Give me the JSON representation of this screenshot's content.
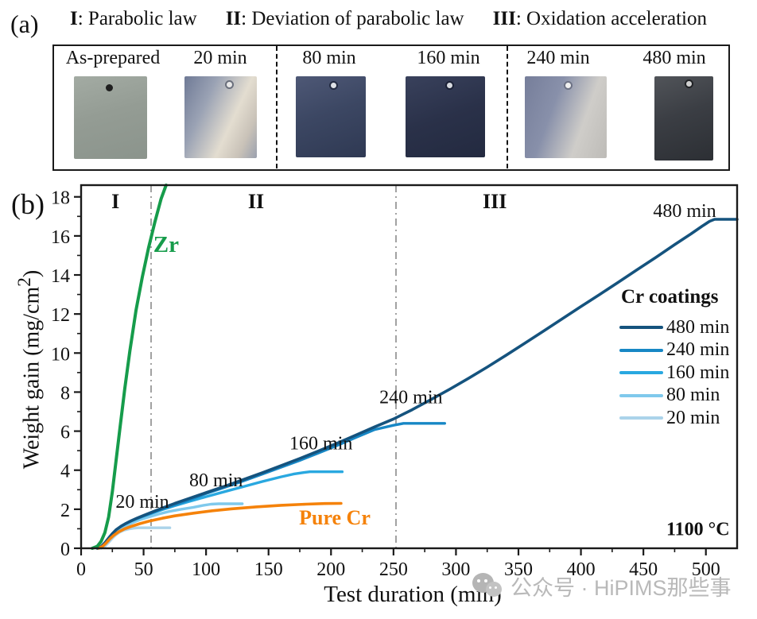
{
  "watermark": {
    "text": "公众号 · HiPIMS那些事"
  },
  "panel_a": {
    "tag": "(a)",
    "header": [
      {
        "numeral": "I",
        "text": ": Parabolic law"
      },
      {
        "numeral": "II",
        "text": ": Deviation of parabolic law"
      },
      {
        "numeral": "III",
        "text": ": Oxidation acceleration"
      }
    ],
    "samples": [
      {
        "label": "As-prepared"
      },
      {
        "label": "20 min"
      },
      {
        "label": "80 min"
      },
      {
        "label": "160 min"
      },
      {
        "label": "240 min"
      },
      {
        "label": "480 min"
      }
    ]
  },
  "panel_b": {
    "tag": "(b)",
    "xlabel": "Test duration (min)",
    "ylabel_pre": "Weight gain (mg/cm",
    "ylabel_sup": "2",
    "ylabel_post": ")"
  },
  "chart_data": {
    "type": "line",
    "title": "",
    "xlabel": "Test duration (min)",
    "ylabel": "Weight gain (mg/cm²)",
    "xlim": [
      0,
      525
    ],
    "ylim": [
      0,
      18.6
    ],
    "x_major_ticks": [
      0,
      50,
      100,
      150,
      200,
      250,
      300,
      350,
      400,
      450,
      500
    ],
    "x_minor_step": 25,
    "y_major_ticks": [
      0,
      2,
      4,
      6,
      8,
      10,
      12,
      14,
      16,
      18
    ],
    "y_minor_step": 1,
    "grid": false,
    "frame_color": "#1a1a1a",
    "region_dividers_x": [
      56,
      252
    ],
    "legend": {
      "title": "Cr coatings",
      "entries": [
        {
          "label": "480 min",
          "color": "#15537e"
        },
        {
          "label": "240 min",
          "color": "#1787c5"
        },
        {
          "label": "160 min",
          "color": "#29a8e0"
        },
        {
          "label": "80 min",
          "color": "#7fc9ec"
        },
        {
          "label": "20 min",
          "color": "#abd3ea"
        }
      ]
    },
    "series": [
      {
        "id": "cr-20",
        "name": "Cr coating 20 min",
        "color": "#abd3ea",
        "width": 3.4,
        "points": [
          [
            16,
            0
          ],
          [
            19,
            0.1
          ],
          [
            22,
            0.3
          ],
          [
            25,
            0.52
          ],
          [
            28,
            0.7
          ],
          [
            31,
            0.83
          ],
          [
            34,
            0.92
          ],
          [
            38,
            0.99
          ],
          [
            42,
            1.03
          ],
          [
            46,
            1.05
          ],
          [
            71,
            1.05
          ]
        ]
      },
      {
        "id": "cr-80",
        "name": "Cr coating 80 min",
        "color": "#7fc9ec",
        "width": 3.4,
        "points": [
          [
            14,
            0
          ],
          [
            17,
            0.08
          ],
          [
            20,
            0.27
          ],
          [
            23,
            0.5
          ],
          [
            26,
            0.72
          ],
          [
            30,
            0.92
          ],
          [
            34,
            1.08
          ],
          [
            38,
            1.22
          ],
          [
            43,
            1.36
          ],
          [
            48,
            1.48
          ],
          [
            55,
            1.62
          ],
          [
            62,
            1.75
          ],
          [
            70,
            1.88
          ],
          [
            80,
            2.0
          ],
          [
            90,
            2.1
          ],
          [
            98,
            2.2
          ],
          [
            104,
            2.26
          ],
          [
            110,
            2.28
          ],
          [
            129,
            2.28
          ]
        ]
      },
      {
        "id": "cr-160",
        "name": "Cr coating 160 min",
        "color": "#29a8e0",
        "width": 3.4,
        "points": [
          [
            13,
            0
          ],
          [
            16,
            0.08
          ],
          [
            19,
            0.28
          ],
          [
            22,
            0.52
          ],
          [
            25,
            0.75
          ],
          [
            28,
            0.95
          ],
          [
            32,
            1.12
          ],
          [
            36,
            1.27
          ],
          [
            40,
            1.39
          ],
          [
            45,
            1.52
          ],
          [
            50,
            1.64
          ],
          [
            57,
            1.8
          ],
          [
            65,
            1.98
          ],
          [
            75,
            2.18
          ],
          [
            85,
            2.37
          ],
          [
            100,
            2.64
          ],
          [
            115,
            2.9
          ],
          [
            130,
            3.16
          ],
          [
            145,
            3.42
          ],
          [
            160,
            3.66
          ],
          [
            170,
            3.8
          ],
          [
            178,
            3.88
          ],
          [
            183,
            3.92
          ],
          [
            209,
            3.92
          ]
        ]
      },
      {
        "id": "cr-240",
        "name": "Cr coating 240 min",
        "color": "#1787c5",
        "width": 3.4,
        "points": [
          [
            13,
            0
          ],
          [
            16,
            0.08
          ],
          [
            19,
            0.28
          ],
          [
            22,
            0.52
          ],
          [
            25,
            0.75
          ],
          [
            28,
            0.95
          ],
          [
            32,
            1.13
          ],
          [
            36,
            1.28
          ],
          [
            40,
            1.4
          ],
          [
            45,
            1.54
          ],
          [
            50,
            1.66
          ],
          [
            57,
            1.83
          ],
          [
            65,
            2.02
          ],
          [
            75,
            2.23
          ],
          [
            85,
            2.44
          ],
          [
            100,
            2.8
          ],
          [
            115,
            3.12
          ],
          [
            130,
            3.45
          ],
          [
            145,
            3.8
          ],
          [
            160,
            4.15
          ],
          [
            175,
            4.5
          ],
          [
            190,
            4.88
          ],
          [
            205,
            5.27
          ],
          [
            220,
            5.68
          ],
          [
            235,
            6.08
          ],
          [
            250,
            6.3
          ],
          [
            258,
            6.4
          ],
          [
            291,
            6.4
          ]
        ]
      },
      {
        "id": "cr-480",
        "name": "Cr coating 480 min",
        "color": "#15537e",
        "width": 3.6,
        "points": [
          [
            13,
            0
          ],
          [
            16,
            0.08
          ],
          [
            19,
            0.28
          ],
          [
            22,
            0.52
          ],
          [
            25,
            0.75
          ],
          [
            28,
            0.95
          ],
          [
            32,
            1.13
          ],
          [
            36,
            1.28
          ],
          [
            40,
            1.41
          ],
          [
            45,
            1.55
          ],
          [
            50,
            1.68
          ],
          [
            57,
            1.86
          ],
          [
            65,
            2.06
          ],
          [
            75,
            2.3
          ],
          [
            85,
            2.52
          ],
          [
            100,
            2.85
          ],
          [
            115,
            3.18
          ],
          [
            130,
            3.52
          ],
          [
            145,
            3.87
          ],
          [
            160,
            4.23
          ],
          [
            175,
            4.6
          ],
          [
            190,
            4.98
          ],
          [
            205,
            5.38
          ],
          [
            220,
            5.8
          ],
          [
            235,
            6.22
          ],
          [
            250,
            6.62
          ],
          [
            265,
            7.1
          ],
          [
            280,
            7.62
          ],
          [
            295,
            8.15
          ],
          [
            310,
            8.7
          ],
          [
            325,
            9.28
          ],
          [
            340,
            9.88
          ],
          [
            355,
            10.5
          ],
          [
            370,
            11.12
          ],
          [
            385,
            11.75
          ],
          [
            400,
            12.38
          ],
          [
            415,
            13.0
          ],
          [
            430,
            13.63
          ],
          [
            445,
            14.27
          ],
          [
            460,
            14.9
          ],
          [
            475,
            15.55
          ],
          [
            488,
            16.1
          ],
          [
            497,
            16.5
          ],
          [
            503,
            16.75
          ],
          [
            507,
            16.85
          ],
          [
            525,
            16.85
          ]
        ]
      },
      {
        "id": "pure-cr",
        "name": "Pure Cr",
        "color": "#f5820a",
        "width": 3.6,
        "points": [
          [
            14,
            0
          ],
          [
            17,
            0.09
          ],
          [
            20,
            0.27
          ],
          [
            23,
            0.48
          ],
          [
            26,
            0.66
          ],
          [
            30,
            0.84
          ],
          [
            35,
            1.0
          ],
          [
            40,
            1.12
          ],
          [
            47,
            1.26
          ],
          [
            55,
            1.4
          ],
          [
            65,
            1.54
          ],
          [
            75,
            1.66
          ],
          [
            90,
            1.8
          ],
          [
            105,
            1.92
          ],
          [
            120,
            2.02
          ],
          [
            140,
            2.12
          ],
          [
            160,
            2.2
          ],
          [
            180,
            2.26
          ],
          [
            195,
            2.29
          ],
          [
            208,
            2.3
          ]
        ]
      },
      {
        "id": "zr",
        "name": "Zr",
        "color": "#169c4b",
        "width": 4,
        "points": [
          [
            9,
            0
          ],
          [
            13,
            0.1
          ],
          [
            16,
            0.35
          ],
          [
            19,
            0.8
          ],
          [
            22,
            1.6
          ],
          [
            25,
            2.9
          ],
          [
            28,
            4.5
          ],
          [
            31,
            6.1
          ],
          [
            35,
            8.2
          ],
          [
            39,
            10.1
          ],
          [
            44,
            12.2
          ],
          [
            49,
            13.9
          ],
          [
            54,
            15.4
          ],
          [
            59,
            16.7
          ],
          [
            64,
            17.9
          ],
          [
            68,
            18.6
          ]
        ]
      }
    ],
    "annotations": [
      {
        "id": "region-i",
        "text": "I",
        "x": 27.5,
        "y": 17.75,
        "bold": true,
        "size": 26,
        "color": "#111111"
      },
      {
        "id": "region-ii",
        "text": "II",
        "x": 140,
        "y": 17.75,
        "bold": true,
        "size": 26,
        "color": "#111111"
      },
      {
        "id": "region-iii",
        "text": "III",
        "x": 331,
        "y": 17.75,
        "bold": true,
        "size": 26,
        "color": "#111111"
      },
      {
        "id": "zr-label",
        "text": "Zr",
        "x": 68,
        "y": 15.5,
        "bold": true,
        "size": 29,
        "color": "#169c4b"
      },
      {
        "id": "pure-cr-label",
        "text": "Pure Cr",
        "x": 203,
        "y": 1.55,
        "bold": true,
        "size": 26,
        "color": "#f5820a"
      },
      {
        "id": "t20",
        "text": "20 min",
        "x": 49,
        "y": 2.4,
        "bold": false,
        "size": 24,
        "color": "#111111"
      },
      {
        "id": "t80",
        "text": "80 min",
        "x": 108,
        "y": 3.5,
        "bold": false,
        "size": 24,
        "color": "#111111"
      },
      {
        "id": "t160",
        "text": "160 min",
        "x": 192,
        "y": 5.4,
        "bold": false,
        "size": 24,
        "color": "#111111"
      },
      {
        "id": "t240",
        "text": "240 min",
        "x": 264,
        "y": 7.75,
        "bold": false,
        "size": 24,
        "color": "#111111"
      },
      {
        "id": "t480",
        "text": "480 min",
        "x": 483,
        "y": 17.3,
        "bold": false,
        "size": 24,
        "color": "#111111"
      },
      {
        "id": "temperature",
        "text": "1100 °C",
        "x": 519,
        "y": 1.0,
        "bold": true,
        "size": 24,
        "color": "#111111",
        "anchor": "end"
      }
    ]
  }
}
